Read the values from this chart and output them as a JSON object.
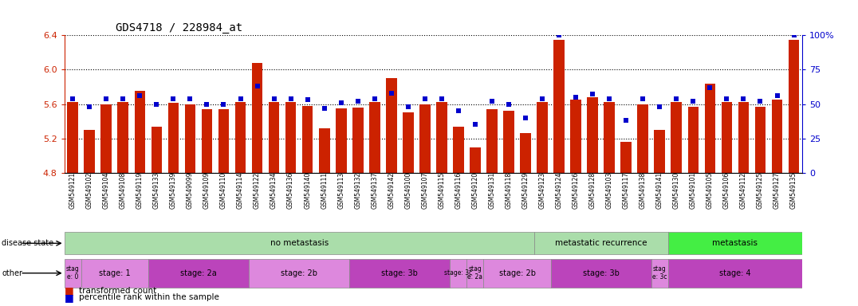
{
  "title": "GDS4718 / 228984_at",
  "bar_color": "#cc2200",
  "dot_color": "#0000cc",
  "ylim_left": [
    4.8,
    6.4
  ],
  "ylim_right": [
    0,
    100
  ],
  "yticks_left": [
    4.8,
    5.2,
    5.6,
    6.0,
    6.4
  ],
  "yticks_right": [
    0,
    25,
    50,
    75,
    100
  ],
  "samples": [
    "GSM549121",
    "GSM549102",
    "GSM549104",
    "GSM549108",
    "GSM549119",
    "GSM549133",
    "GSM549139",
    "GSM549099",
    "GSM549109",
    "GSM549110",
    "GSM549114",
    "GSM549122",
    "GSM549134",
    "GSM549136",
    "GSM549140",
    "GSM549111",
    "GSM549113",
    "GSM549132",
    "GSM549137",
    "GSM549142",
    "GSM549100",
    "GSM549107",
    "GSM549115",
    "GSM549116",
    "GSM549120",
    "GSM549131",
    "GSM549118",
    "GSM549129",
    "GSM549123",
    "GSM549124",
    "GSM549126",
    "GSM549128",
    "GSM549103",
    "GSM549117",
    "GSM549138",
    "GSM549141",
    "GSM549130",
    "GSM549101",
    "GSM549105",
    "GSM549106",
    "GSM549112",
    "GSM549125",
    "GSM549127",
    "GSM549135"
  ],
  "bar_values": [
    5.62,
    5.3,
    5.6,
    5.62,
    5.75,
    5.34,
    5.61,
    5.6,
    5.54,
    5.54,
    5.62,
    6.08,
    5.62,
    5.62,
    5.58,
    5.32,
    5.55,
    5.56,
    5.62,
    5.9,
    5.5,
    5.6,
    5.62,
    5.34,
    5.1,
    5.54,
    5.52,
    5.26,
    5.62,
    6.35,
    5.65,
    5.68,
    5.62,
    5.16,
    5.6,
    5.3,
    5.62,
    5.57,
    5.84,
    5.62,
    5.62,
    5.57,
    5.65,
    6.35
  ],
  "dot_values": [
    54,
    48,
    54,
    54,
    56,
    50,
    54,
    54,
    50,
    50,
    54,
    63,
    54,
    54,
    53,
    47,
    51,
    52,
    54,
    58,
    48,
    54,
    54,
    45,
    35,
    52,
    50,
    40,
    54,
    100,
    55,
    57,
    54,
    38,
    54,
    48,
    54,
    52,
    62,
    54,
    54,
    52,
    56,
    100
  ],
  "disease_state_groups": [
    {
      "label": "no metastasis",
      "start": 0,
      "end": 28,
      "color": "#aaddaa"
    },
    {
      "label": "metastatic recurrence",
      "start": 28,
      "end": 36,
      "color": "#aaddaa"
    },
    {
      "label": "metastasis",
      "start": 36,
      "end": 44,
      "color": "#44ee44"
    }
  ],
  "stage_groups": [
    {
      "label": "stag\ne: 0",
      "start": 0,
      "end": 1,
      "color": "#dd88dd"
    },
    {
      "label": "stage: 1",
      "start": 1,
      "end": 5,
      "color": "#dd88dd"
    },
    {
      "label": "stage: 2a",
      "start": 5,
      "end": 11,
      "color": "#bb44bb"
    },
    {
      "label": "stage: 2b",
      "start": 11,
      "end": 17,
      "color": "#dd88dd"
    },
    {
      "label": "stage: 3b",
      "start": 17,
      "end": 23,
      "color": "#bb44bb"
    },
    {
      "label": "stage: 3c",
      "start": 23,
      "end": 24,
      "color": "#dd88dd"
    },
    {
      "label": "stag\ne: 2a",
      "start": 24,
      "end": 25,
      "color": "#dd88dd"
    },
    {
      "label": "stage: 2b",
      "start": 25,
      "end": 29,
      "color": "#dd88dd"
    },
    {
      "label": "stage: 3b",
      "start": 29,
      "end": 35,
      "color": "#bb44bb"
    },
    {
      "label": "stag\ne: 3c",
      "start": 35,
      "end": 36,
      "color": "#dd88dd"
    },
    {
      "label": "stage: 4",
      "start": 36,
      "end": 44,
      "color": "#bb44bb"
    }
  ],
  "bar_bottom": 4.8
}
